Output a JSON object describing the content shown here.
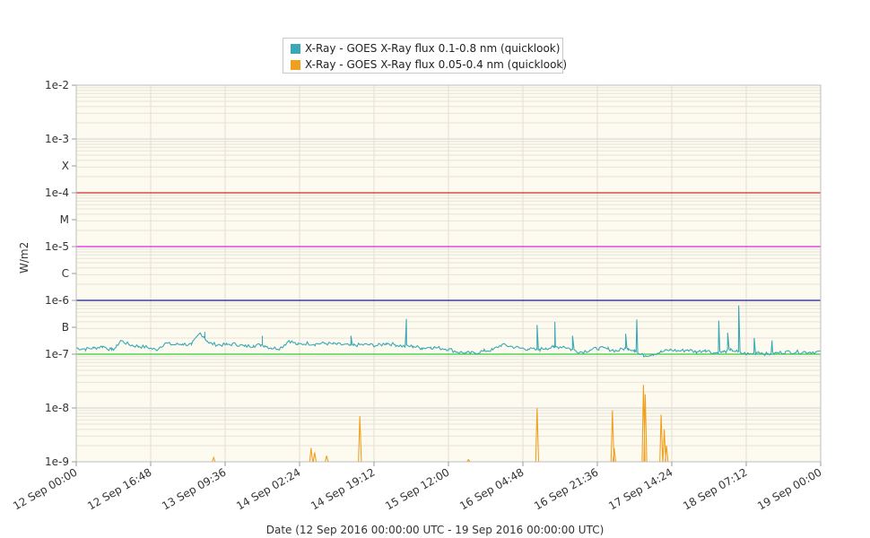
{
  "chart_data": {
    "type": "line",
    "title": "",
    "xlabel": "Date (12 Sep 2016 00:00:00 UTC - 19 Sep 2016 00:00:00 UTC)",
    "ylabel": "W/m2",
    "y_scale": "log",
    "ylim": [
      1e-09,
      0.01
    ],
    "x_tick_labels": [
      "12 Sep 00:00",
      "12 Sep 16:48",
      "13 Sep 09:36",
      "14 Sep 02:24",
      "14 Sep 19:12",
      "15 Sep 12:00",
      "16 Sep 04:48",
      "16 Sep 21:36",
      "17 Sep 14:24",
      "18 Sep 07:12",
      "19 Sep 00:00"
    ],
    "y_tick_labels": [
      {
        "label": "1e-2",
        "value": 0.01
      },
      {
        "label": "1e-3",
        "value": 0.001
      },
      {
        "label": "X",
        "value": 0.000316
      },
      {
        "label": "1e-4",
        "value": 0.0001
      },
      {
        "label": "M",
        "value": 3.16e-05
      },
      {
        "label": "1e-5",
        "value": 1e-05
      },
      {
        "label": "C",
        "value": 3.16e-06
      },
      {
        "label": "1e-6",
        "value": 1e-06
      },
      {
        "label": "B",
        "value": 3.16e-07
      },
      {
        "label": "1e-7",
        "value": 1e-07
      },
      {
        "label": "1e-8",
        "value": 1e-08
      },
      {
        "label": "1e-9",
        "value": 1e-09
      }
    ],
    "threshold_lines": [
      {
        "value": 0.0001,
        "color": "#d62728"
      },
      {
        "value": 1e-05,
        "color": "#e020e0"
      },
      {
        "value": 1e-06,
        "color": "#1a1a8c"
      },
      {
        "value": 1e-07,
        "color": "#33cc33"
      }
    ],
    "grid": true,
    "legend_position": "top-center",
    "series": [
      {
        "name": "X-Ray - GOES X-Ray flux 0.1-0.8 nm (quicklook)",
        "color": "#3aa9b5",
        "x_hours": [
          0,
          2,
          4,
          6,
          8,
          9,
          10,
          12,
          14,
          16,
          18,
          20,
          22,
          24,
          26,
          28,
          29,
          30,
          32,
          34,
          36,
          38,
          40,
          42,
          44,
          46,
          47,
          48,
          50,
          52,
          54,
          56,
          58,
          60,
          62,
          64,
          66,
          68,
          70,
          72,
          74,
          76,
          78,
          80,
          82,
          84,
          86,
          88,
          90,
          92,
          94,
          96,
          98,
          100,
          102,
          104,
          106,
          108,
          110,
          112,
          114,
          116,
          118,
          120,
          122,
          124,
          126,
          127,
          128,
          130,
          132,
          134,
          136,
          138,
          140,
          142,
          144,
          146,
          148,
          150,
          152,
          154,
          156,
          158,
          160
        ],
        "values": [
          1.3e-07,
          1.25e-07,
          1.3e-07,
          1.4e-07,
          1.2e-07,
          1.35e-07,
          1.8e-07,
          1.5e-07,
          1.4e-07,
          1.35e-07,
          1.2e-07,
          1.6e-07,
          1.5e-07,
          1.55e-07,
          1.5e-07,
          2.5e-07,
          2e-07,
          1.6e-07,
          1.5e-07,
          1.5e-07,
          1.55e-07,
          1.4e-07,
          1.45e-07,
          1.5e-07,
          1.3e-07,
          1.3e-07,
          1.5e-07,
          1.8e-07,
          1.5e-07,
          1.6e-07,
          1.55e-07,
          1.6e-07,
          1.55e-07,
          1.5e-07,
          1.45e-07,
          1.5e-07,
          1.5e-07,
          1.45e-07,
          1.6e-07,
          1.5e-07,
          1.4e-07,
          1.4e-07,
          1.3e-07,
          1.35e-07,
          1.3e-07,
          1.25e-07,
          1.1e-07,
          1.05e-07,
          1.05e-07,
          1.15e-07,
          1.2e-07,
          1.5e-07,
          1.4e-07,
          1.3e-07,
          1.25e-07,
          1.2e-07,
          1.3e-07,
          1.35e-07,
          1.4e-07,
          1.2e-07,
          1.1e-07,
          1.2e-07,
          1.3e-07,
          1.25e-07,
          1.15e-07,
          1.3e-07,
          1.2e-07,
          1e-07,
          9.5e-08,
          1e-07,
          1.1e-07,
          1.2e-07,
          1.15e-07,
          1.2e-07,
          1.1e-07,
          1.2e-07,
          1.05e-07,
          1.1e-07,
          1.2e-07,
          1.05e-07,
          1e-07,
          1.1e-07,
          1e-07,
          1.05e-07,
          1.1e-07
        ],
        "spikes": [
          {
            "x_hours": 29,
            "value": 2.6e-07
          },
          {
            "x_hours": 42,
            "value": 2.2e-07
          },
          {
            "x_hours": 62,
            "value": 2.2e-07
          },
          {
            "x_hours": 74.5,
            "value": 4.5e-07
          },
          {
            "x_hours": 104,
            "value": 3.5e-07
          },
          {
            "x_hours": 108,
            "value": 4e-07
          },
          {
            "x_hours": 112,
            "value": 2.2e-07
          },
          {
            "x_hours": 124,
            "value": 2.4e-07
          },
          {
            "x_hours": 126.5,
            "value": 4.4e-07
          },
          {
            "x_hours": 145,
            "value": 4.2e-07
          },
          {
            "x_hours": 147,
            "value": 2.5e-07
          },
          {
            "x_hours": 149.5,
            "value": 8e-07
          },
          {
            "x_hours": 153,
            "value": 2e-07
          },
          {
            "x_hours": 157,
            "value": 1.8e-07
          }
        ]
      },
      {
        "name": "X-Ray - GOES X-Ray flux 0.05-0.4 nm (quicklook)",
        "color": "#f0a020",
        "baseline": 1e-09,
        "spikes": [
          {
            "x_hours": 31,
            "value": 1.2e-09
          },
          {
            "x_hours": 53,
            "value": 1.8e-09
          },
          {
            "x_hours": 53.8,
            "value": 1.5e-09
          },
          {
            "x_hours": 56.5,
            "value": 1.3e-09
          },
          {
            "x_hours": 64,
            "value": 7e-09
          },
          {
            "x_hours": 88.5,
            "value": 1.1e-09
          },
          {
            "x_hours": 104,
            "value": 1e-08
          },
          {
            "x_hours": 121,
            "value": 9e-09
          },
          {
            "x_hours": 121.4,
            "value": 1.8e-09
          },
          {
            "x_hours": 128,
            "value": 2.7e-08
          },
          {
            "x_hours": 128.4,
            "value": 1.8e-08
          },
          {
            "x_hours": 132,
            "value": 7.5e-09
          },
          {
            "x_hours": 132.7,
            "value": 4e-09
          },
          {
            "x_hours": 133.2,
            "value": 2e-09
          }
        ]
      }
    ]
  }
}
